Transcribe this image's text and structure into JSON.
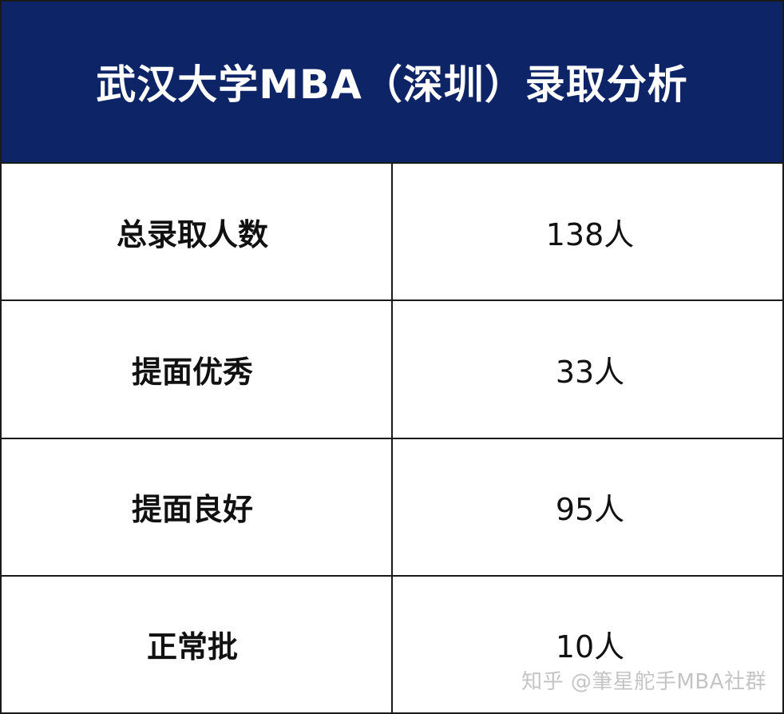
{
  "table": {
    "title": "武汉大学MBA（深圳）录取分析",
    "rows": [
      {
        "label": "总录取人数",
        "value": "138人"
      },
      {
        "label": "提面优秀",
        "value": "33人"
      },
      {
        "label": "提面良好",
        "value": "95人"
      },
      {
        "label": "正常批",
        "value": "10人"
      }
    ]
  },
  "watermark": "知乎 @筆星舵手MBA社群",
  "colors": {
    "header_bg": "#0d2466",
    "header_text": "#ffffff",
    "border": "#1a1a1a",
    "watermark": "#c4c4c4"
  }
}
